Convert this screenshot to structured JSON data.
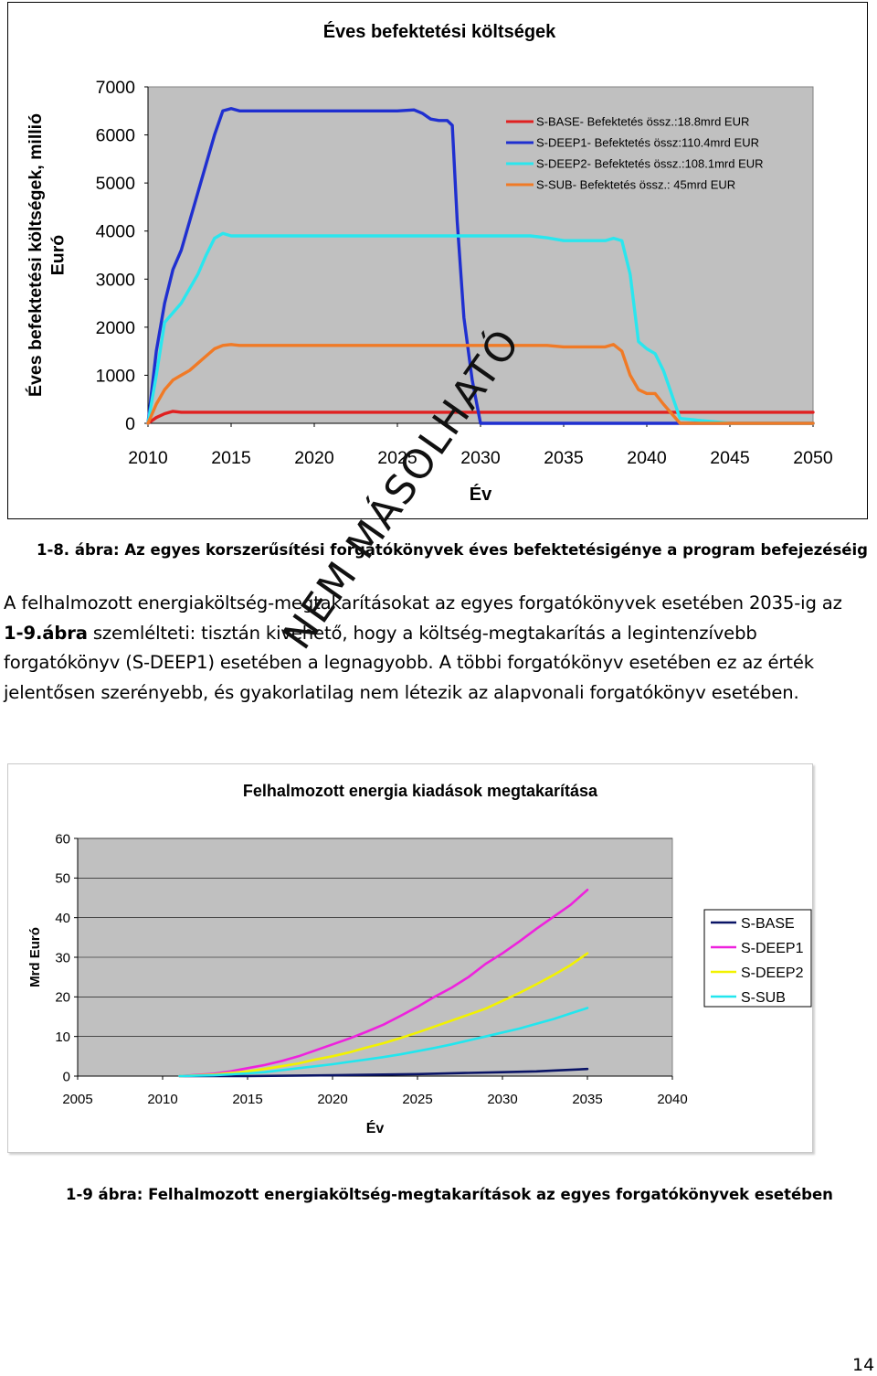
{
  "chart_data": [
    {
      "type": "line",
      "title": "Éves befektetési költségek",
      "xlabel": "Év",
      "ylabel": "Éves befektetési költségek, millió Euró",
      "xlim": [
        2010,
        2050
      ],
      "ylim": [
        0,
        7000
      ],
      "xticks": [
        2010,
        2015,
        2020,
        2025,
        2030,
        2035,
        2040,
        2045,
        2050
      ],
      "yticks": [
        0,
        1000,
        2000,
        3000,
        4000,
        5000,
        6000,
        7000
      ],
      "grid": false,
      "legend_position": "top-right",
      "background": "#c0c0c0",
      "series": [
        {
          "name": "S-BASE- Befektetés össz.:18.8mrd EUR",
          "color": "#e02020",
          "x": [
            2010,
            2010.5,
            2011,
            2011.5,
            2012,
            2013,
            2015,
            2020,
            2030,
            2040,
            2050
          ],
          "y": [
            0,
            120,
            200,
            250,
            230,
            230,
            230,
            230,
            230,
            230,
            230
          ]
        },
        {
          "name": "S-DEEP1- Befektetés össz:110.4mrd EUR",
          "color": "#1f2fd0",
          "x": [
            2010,
            2010.5,
            2011,
            2011.5,
            2012,
            2012.5,
            2013,
            2013.5,
            2014,
            2014.5,
            2015,
            2015.5,
            2016,
            2020,
            2025,
            2026,
            2026.5,
            2027,
            2027.5,
            2028,
            2028.3,
            2028.6,
            2029,
            2029.5,
            2030,
            2032,
            2040,
            2050
          ],
          "y": [
            0,
            1500,
            2500,
            3200,
            3600,
            4200,
            4800,
            5400,
            6000,
            6500,
            6550,
            6500,
            6500,
            6500,
            6500,
            6520,
            6450,
            6330,
            6300,
            6300,
            6200,
            4200,
            2200,
            900,
            0,
            0,
            0,
            0
          ]
        },
        {
          "name": "S-DEEP2- Befektetés össz.:108.1mrd EUR",
          "color": "#2ae6ee",
          "x": [
            2010,
            2010.5,
            2011,
            2011.5,
            2012,
            2012.5,
            2013,
            2013.5,
            2014,
            2014.5,
            2015,
            2015.5,
            2020,
            2030,
            2033,
            2034,
            2035,
            2036,
            2037,
            2037.5,
            2038,
            2038.5,
            2039,
            2039.5,
            2040,
            2040.5,
            2041,
            2042,
            2045,
            2050
          ],
          "y": [
            0,
            1000,
            2100,
            2300,
            2500,
            2800,
            3100,
            3500,
            3850,
            3950,
            3900,
            3900,
            3900,
            3900,
            3900,
            3860,
            3800,
            3800,
            3800,
            3800,
            3850,
            3800,
            3100,
            1700,
            1550,
            1450,
            1100,
            100,
            0,
            0
          ]
        },
        {
          "name": "S-SUB- Befektetés össz.: 45mrd EUR",
          "color": "#f07a26",
          "x": [
            2010,
            2010.5,
            2011,
            2011.5,
            2012,
            2012.5,
            2013,
            2013.5,
            2014,
            2014.5,
            2015,
            2015.5,
            2020,
            2030,
            2034,
            2035,
            2036,
            2037,
            2037.5,
            2038,
            2038.5,
            2039,
            2039.5,
            2040,
            2040.5,
            2041,
            2042,
            2045,
            2050
          ],
          "y": [
            0,
            400,
            700,
            900,
            1000,
            1100,
            1250,
            1400,
            1550,
            1620,
            1640,
            1620,
            1620,
            1620,
            1620,
            1590,
            1590,
            1590,
            1590,
            1640,
            1500,
            1000,
            700,
            620,
            620,
            400,
            0,
            0,
            0
          ]
        }
      ]
    },
    {
      "type": "line",
      "title": "Felhalmozott energia kiadások megtakarítása",
      "xlabel": "Év",
      "ylabel": "Mrd Euró",
      "xlim": [
        2005,
        2040
      ],
      "ylim": [
        0,
        60
      ],
      "xticks": [
        2005,
        2010,
        2015,
        2020,
        2025,
        2030,
        2035,
        2040
      ],
      "yticks": [
        0,
        10,
        20,
        30,
        40,
        50,
        60
      ],
      "grid": true,
      "legend_position": "right",
      "background": "#c0c0c0",
      "series": [
        {
          "name": "S-BASE",
          "color": "#0a1466",
          "x": [
            2011,
            2015,
            2020,
            2025,
            2028,
            2030,
            2032,
            2033,
            2035
          ],
          "y": [
            0,
            0,
            0.2,
            0.5,
            0.8,
            1.0,
            1.2,
            1.4,
            1.8
          ]
        },
        {
          "name": "S-DEEP1",
          "color": "#ee22dd",
          "x": [
            2011,
            2012,
            2013,
            2014,
            2015,
            2016,
            2017,
            2018,
            2019,
            2020,
            2021,
            2022,
            2023,
            2024,
            2025,
            2026,
            2027,
            2028,
            2029,
            2030,
            2031,
            2032,
            2033,
            2034,
            2035
          ],
          "y": [
            0,
            0.3,
            0.6,
            1.2,
            2.0,
            2.8,
            3.8,
            5.0,
            6.5,
            8.0,
            9.5,
            11.2,
            13.0,
            15.2,
            17.5,
            20.0,
            22.3,
            25.0,
            28.3,
            31.0,
            34.0,
            37.2,
            40.2,
            43.2,
            47.0
          ]
        },
        {
          "name": "S-DEEP2",
          "color": "#f2f200",
          "x": [
            2011,
            2013,
            2015,
            2016,
            2017,
            2018,
            2019,
            2020,
            2021,
            2022,
            2023,
            2024,
            2025,
            2026,
            2027,
            2028,
            2029,
            2030,
            2031,
            2032,
            2033,
            2034,
            2035
          ],
          "y": [
            0,
            0.4,
            1.2,
            1.8,
            2.5,
            3.2,
            4.2,
            5.0,
            6.0,
            7.2,
            8.3,
            9.6,
            11.0,
            12.5,
            14.0,
            15.5,
            17.0,
            19.0,
            21.0,
            23.2,
            25.5,
            28.0,
            31.0
          ]
        },
        {
          "name": "S-SUB",
          "color": "#22e6ee",
          "x": [
            2011,
            2013,
            2015,
            2016,
            2017,
            2018,
            2019,
            2020,
            2021,
            2022,
            2023,
            2024,
            2025,
            2026,
            2027,
            2028,
            2029,
            2030,
            2031,
            2032,
            2033,
            2034,
            2035
          ],
          "y": [
            0,
            0.2,
            0.7,
            1.0,
            1.5,
            2.0,
            2.5,
            3.0,
            3.6,
            4.2,
            4.8,
            5.5,
            6.3,
            7.1,
            8.0,
            9.0,
            10.0,
            11.0,
            12.0,
            13.2,
            14.4,
            15.8,
            17.2
          ]
        }
      ]
    }
  ],
  "captions": {
    "figure_1_8": "1-8. ábra: Az egyes korszerűsítési forgatókönyvek éves befektetésigénye a program befejezéséig",
    "figure_1_9": "1-9 ábra: Felhalmozott energiaköltség-megtakarítások az egyes forgatókönyvek esetében"
  },
  "paragraph": {
    "part1": "A felhalmozott energiaköltség-megtakarításokat az egyes forgatókönyvek esetében 2035-ig az ",
    "bold": "1-9.ábra",
    "part2": " szemlélteti: tisztán kivehető, hogy a költség-megtakarítás a legintenzívebb forgatókönyv (S-DEEP1) esetében a legnagyobb. A többi forgatókönyv esetében ez az érték jelentősen szerényebb, és gyakorlatilag nem létezik az alapvonali forgatókönyv esetében."
  },
  "watermark": "NEM MÁSOLHATÓ",
  "page_number": "14"
}
